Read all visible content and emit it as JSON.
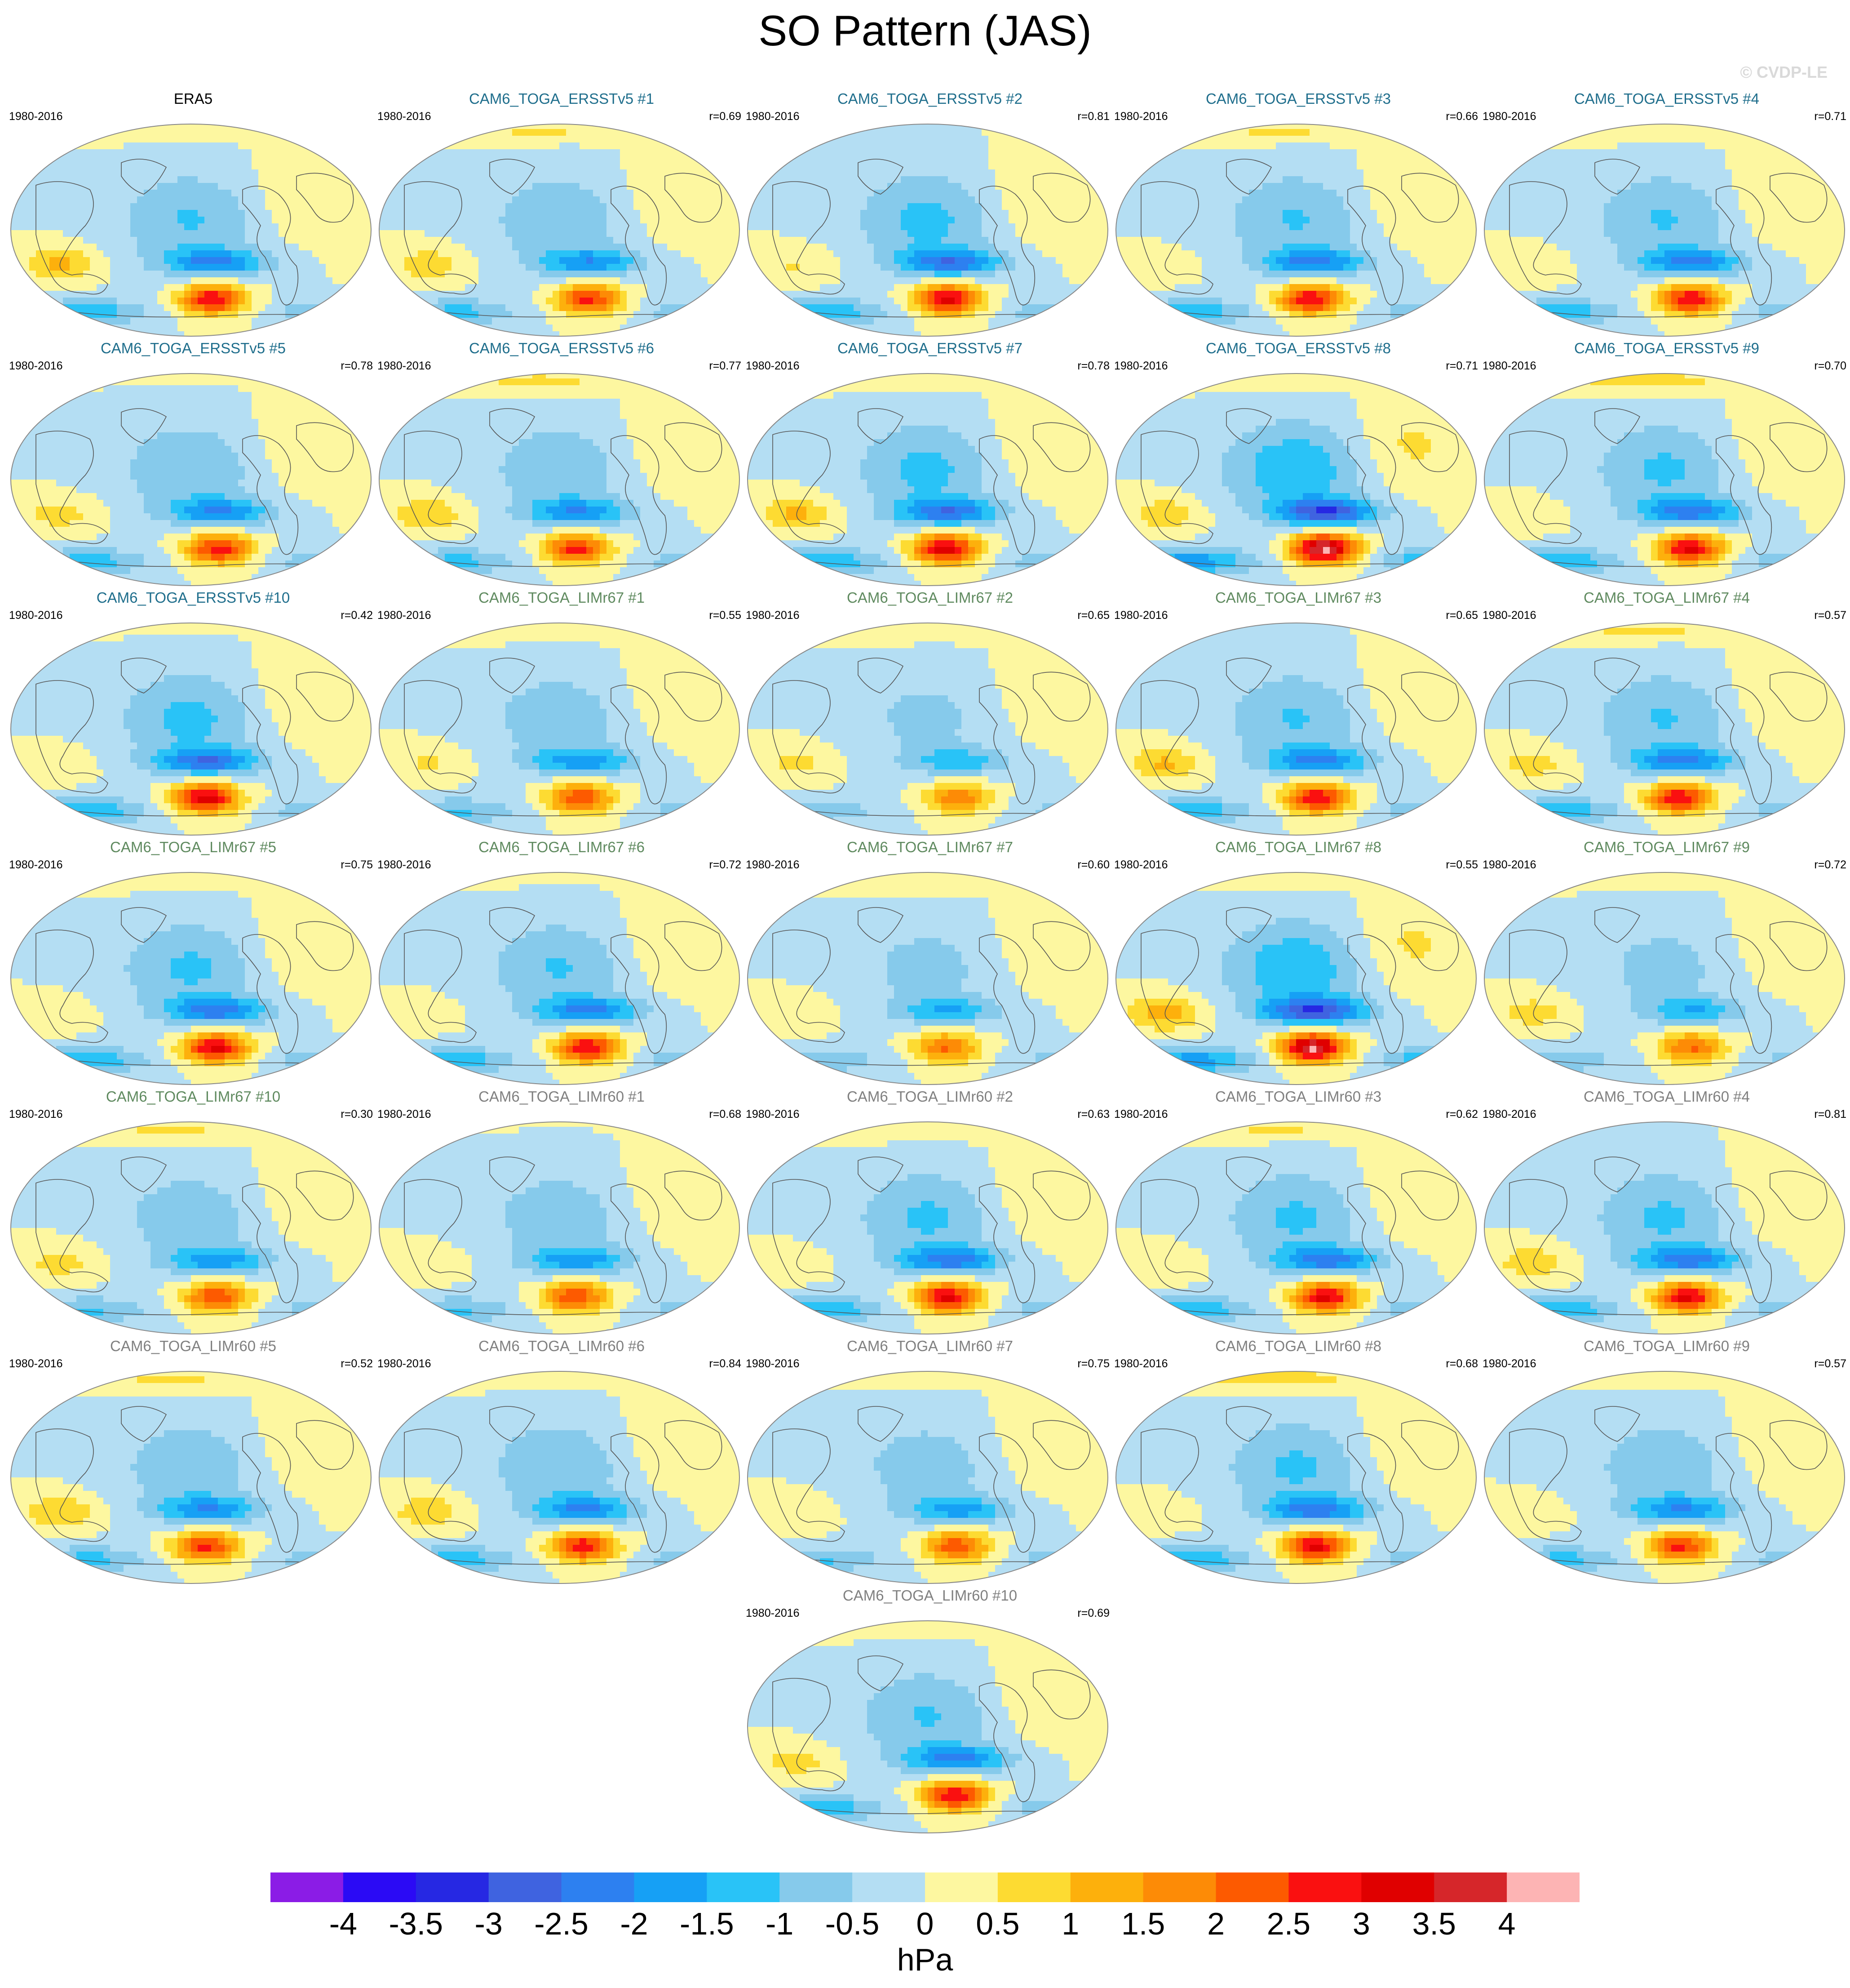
{
  "figure": {
    "title": "SO Pattern (JAS)",
    "watermark": "© CVDP-LE",
    "units": "hPa"
  },
  "colors": {
    "ref_title": "#000000",
    "ersst_title": "#1f6e8c",
    "limr67_title": "#5f8a5f",
    "limr60_title": "#808080",
    "coastline": "#555555",
    "map_border": "#888888"
  },
  "colorbar": {
    "levels": [
      "-4",
      "-3.5",
      "-3",
      "-2.5",
      "-2",
      "-1.5",
      "-1",
      "-0.5",
      "0",
      "0.5",
      "1",
      "1.5",
      "2",
      "2.5",
      "3",
      "3.5",
      "4"
    ],
    "colors": [
      "#8b1ce6",
      "#2b0af5",
      "#2628e3",
      "#3f63e0",
      "#2d80f0",
      "#16a0f5",
      "#29c3f7",
      "#86caeb",
      "#b4def3",
      "#fdf7a0",
      "#fddb32",
      "#fdb00c",
      "#fd8b06",
      "#fd5a00",
      "#fa1010",
      "#e00000",
      "#d6262a",
      "#fdb4b4"
    ]
  },
  "panels": [
    {
      "title": "ERA5",
      "period": "1980-2016",
      "r": "",
      "group": "ref",
      "amp": 0.95
    },
    {
      "title": "CAM6_TOGA_ERSSTv5 #1",
      "period": "1980-2016",
      "r": "r=0.69",
      "group": "ersst",
      "amp": 0.85
    },
    {
      "title": "CAM6_TOGA_ERSSTv5 #2",
      "period": "1980-2016",
      "r": "r=0.81",
      "group": "ersst",
      "amp": 1.05
    },
    {
      "title": "CAM6_TOGA_ERSSTv5 #3",
      "period": "1980-2016",
      "r": "r=0.66",
      "group": "ersst",
      "amp": 0.95
    },
    {
      "title": "CAM6_TOGA_ERSSTv5 #4",
      "period": "1980-2016",
      "r": "r=0.71",
      "group": "ersst",
      "amp": 0.95
    },
    {
      "title": "CAM6_TOGA_ERSSTv5 #5",
      "period": "1980-2016",
      "r": "r=0.78",
      "group": "ersst",
      "amp": 0.9
    },
    {
      "title": "CAM6_TOGA_ERSSTv5 #6",
      "period": "1980-2016",
      "r": "r=0.77",
      "group": "ersst",
      "amp": 0.85
    },
    {
      "title": "CAM6_TOGA_ERSSTv5 #7",
      "period": "1980-2016",
      "r": "r=0.78",
      "group": "ersst",
      "amp": 1.05
    },
    {
      "title": "CAM6_TOGA_ERSSTv5 #8",
      "period": "1980-2016",
      "r": "r=0.71",
      "group": "ersst",
      "amp": 1.3
    },
    {
      "title": "CAM6_TOGA_ERSSTv5 #9",
      "period": "1980-2016",
      "r": "r=0.70",
      "group": "ersst",
      "amp": 1.0
    },
    {
      "title": "CAM6_TOGA_ERSSTv5 #10",
      "period": "1980-2016",
      "r": "r=0.42",
      "group": "ersst",
      "amp": 1.05
    },
    {
      "title": "CAM6_TOGA_LIMr67 #1",
      "period": "1980-2016",
      "r": "r=0.55",
      "group": "limr67",
      "amp": 0.8
    },
    {
      "title": "CAM6_TOGA_LIMr67 #2",
      "period": "1980-2016",
      "r": "r=0.65",
      "group": "limr67",
      "amp": 0.6
    },
    {
      "title": "CAM6_TOGA_LIMr67 #3",
      "period": "1980-2016",
      "r": "r=0.65",
      "group": "limr67",
      "amp": 0.95
    },
    {
      "title": "CAM6_TOGA_LIMr67 #4",
      "period": "1980-2016",
      "r": "r=0.57",
      "group": "limr67",
      "amp": 0.95
    },
    {
      "title": "CAM6_TOGA_LIMr67 #5",
      "period": "1980-2016",
      "r": "r=0.75",
      "group": "limr67",
      "amp": 1.0
    },
    {
      "title": "CAM6_TOGA_LIMr67 #6",
      "period": "1980-2016",
      "r": "r=0.72",
      "group": "limr67",
      "amp": 0.95
    },
    {
      "title": "CAM6_TOGA_LIMr67 #7",
      "period": "1980-2016",
      "r": "r=0.60",
      "group": "limr67",
      "amp": 0.65
    },
    {
      "title": "CAM6_TOGA_LIMr67 #8",
      "period": "1980-2016",
      "r": "r=0.55",
      "group": "limr67",
      "amp": 1.3
    },
    {
      "title": "CAM6_TOGA_LIMr67 #9",
      "period": "1980-2016",
      "r": "r=0.72",
      "group": "limr67",
      "amp": 0.65
    },
    {
      "title": "CAM6_TOGA_LIMr67 #10",
      "period": "1980-2016",
      "r": "r=0.30",
      "group": "limr67",
      "amp": 0.8
    },
    {
      "title": "CAM6_TOGA_LIMr60 #1",
      "period": "1980-2016",
      "r": "r=0.68",
      "group": "limr60",
      "amp": 0.8
    },
    {
      "title": "CAM6_TOGA_LIMr60 #2",
      "period": "1980-2016",
      "r": "r=0.63",
      "group": "limr60",
      "amp": 1.0
    },
    {
      "title": "CAM6_TOGA_LIMr60 #3",
      "period": "1980-2016",
      "r": "r=0.62",
      "group": "limr60",
      "amp": 1.0
    },
    {
      "title": "CAM6_TOGA_LIMr60 #4",
      "period": "1980-2016",
      "r": "r=0.81",
      "group": "limr60",
      "amp": 1.0
    },
    {
      "title": "CAM6_TOGA_LIMr60 #5",
      "period": "1980-2016",
      "r": "r=0.52",
      "group": "limr60",
      "amp": 0.85
    },
    {
      "title": "CAM6_TOGA_LIMr60 #6",
      "period": "1980-2016",
      "r": "r=0.84",
      "group": "limr60",
      "amp": 0.9
    },
    {
      "title": "CAM6_TOGA_LIMr60 #7",
      "period": "1980-2016",
      "r": "r=0.75",
      "group": "limr60",
      "amp": 0.75
    },
    {
      "title": "CAM6_TOGA_LIMr60 #8",
      "period": "1980-2016",
      "r": "r=0.68",
      "group": "limr60",
      "amp": 1.0
    },
    {
      "title": "CAM6_TOGA_LIMr60 #9",
      "period": "1980-2016",
      "r": "r=0.57",
      "group": "limr60",
      "amp": 0.85
    },
    {
      "title": "CAM6_TOGA_LIMr60 #10",
      "period": "1980-2016",
      "r": "r=0.69",
      "group": "limr60",
      "amp": 0.95
    }
  ]
}
